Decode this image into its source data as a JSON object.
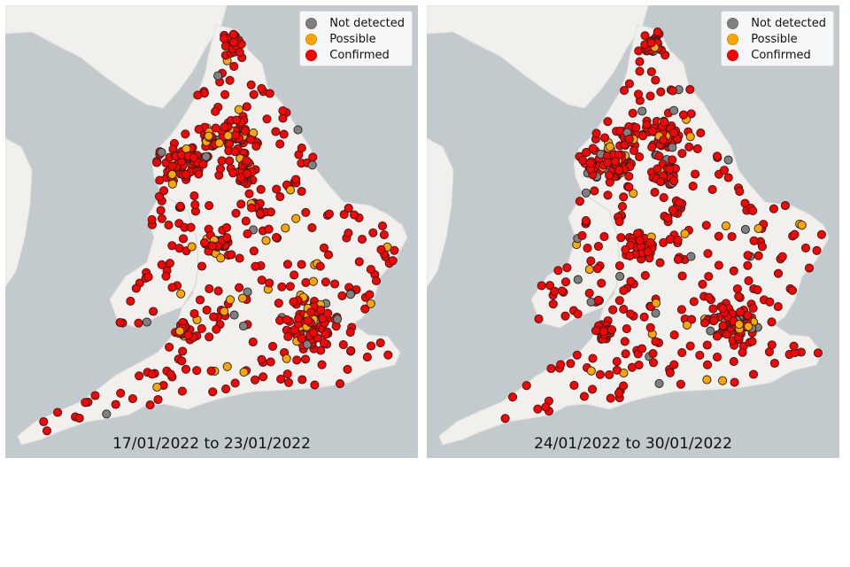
{
  "panels": [
    {
      "date_range": "17/01/2022 to 23/01/2022"
    },
    {
      "date_range": "24/01/2022 to 30/01/2022"
    }
  ],
  "legend": [
    {
      "label": "Not detected",
      "color": "#808080"
    },
    {
      "label": "Possible",
      "color": "#ffa500"
    },
    {
      "label": "Confirmed",
      "color": "#ff0000"
    }
  ],
  "colors": {
    "sea": "#c3cacd",
    "land": "#f2f0ec",
    "marker_edge": "#222222"
  }
}
